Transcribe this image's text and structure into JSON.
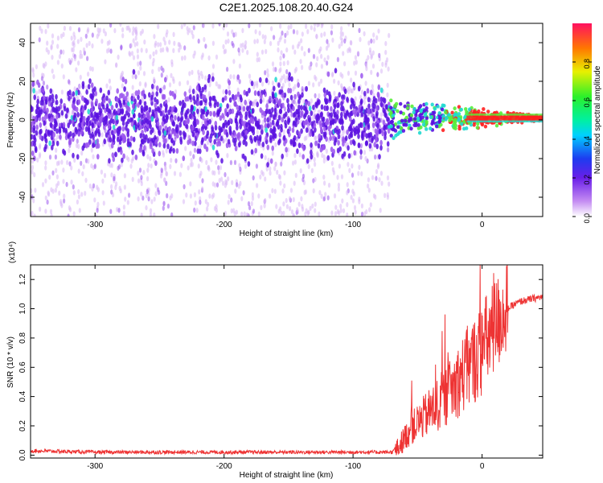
{
  "title": "C2E1.2025.108.20.40.G24",
  "chart_data": [
    {
      "type": "heatmap",
      "xlabel": "Height of straight line (km)",
      "ylabel": "Frequency (Hz)",
      "xlim": [
        -350,
        47
      ],
      "ylim": [
        -50,
        50
      ],
      "xticks": [
        -300,
        -200,
        -100,
        0
      ],
      "yticks": [
        -40,
        -20,
        0,
        20,
        40
      ],
      "colorbar": {
        "label": "Normalized spectral amplitude",
        "range": [
          0,
          1
        ],
        "ticks": [
          "0.0",
          "0.2",
          "0.4",
          "0.6",
          "0.8"
        ]
      },
      "colors": {
        "noise_low": "#d9b8f5",
        "noise_mid": "#9a55ee",
        "noise_high": "#5a10e0",
        "signal_low": "#1fd8d0",
        "signal_mid": "#58ee38",
        "signal_high": "#ff2020"
      },
      "features": {
        "noise_region_x": [
          -350,
          -72
        ],
        "signal_region_x": [
          -72,
          47
        ],
        "signal_center_hz": 1,
        "noise_band_hz": [
          -12,
          12
        ]
      }
    },
    {
      "type": "line",
      "xlabel": "Height of straight line (km)",
      "ylabel": "SNR (10 * v/v)",
      "scale_label": "(x10⁴)",
      "xlim": [
        -350,
        47
      ],
      "ylim": [
        -0.02,
        1.3
      ],
      "xticks": [
        -300,
        -200,
        -100,
        0
      ],
      "yticks": [
        "0.0",
        "0.2",
        "0.4",
        "0.6",
        "0.8",
        "1.0",
        "1.2"
      ],
      "color": "#ee3333",
      "series": [
        {
          "x": [
            -350,
            -300,
            -250,
            -200,
            -150,
            -100,
            -80,
            -70,
            -65,
            -60,
            -55,
            -50,
            -45,
            -40,
            -35,
            -30,
            -25,
            -20,
            -15,
            -10,
            -5,
            0,
            5,
            10,
            15,
            20,
            25,
            30,
            35,
            40,
            47
          ],
          "y": [
            0.03,
            0.02,
            0.02,
            0.02,
            0.02,
            0.02,
            0.02,
            0.02,
            0.05,
            0.12,
            0.18,
            0.22,
            0.26,
            0.3,
            0.34,
            0.38,
            0.43,
            0.49,
            0.55,
            0.6,
            0.66,
            0.72,
            0.8,
            0.88,
            0.95,
            1.0,
            1.03,
            1.05,
            1.06,
            1.07,
            1.08
          ]
        }
      ]
    }
  ]
}
